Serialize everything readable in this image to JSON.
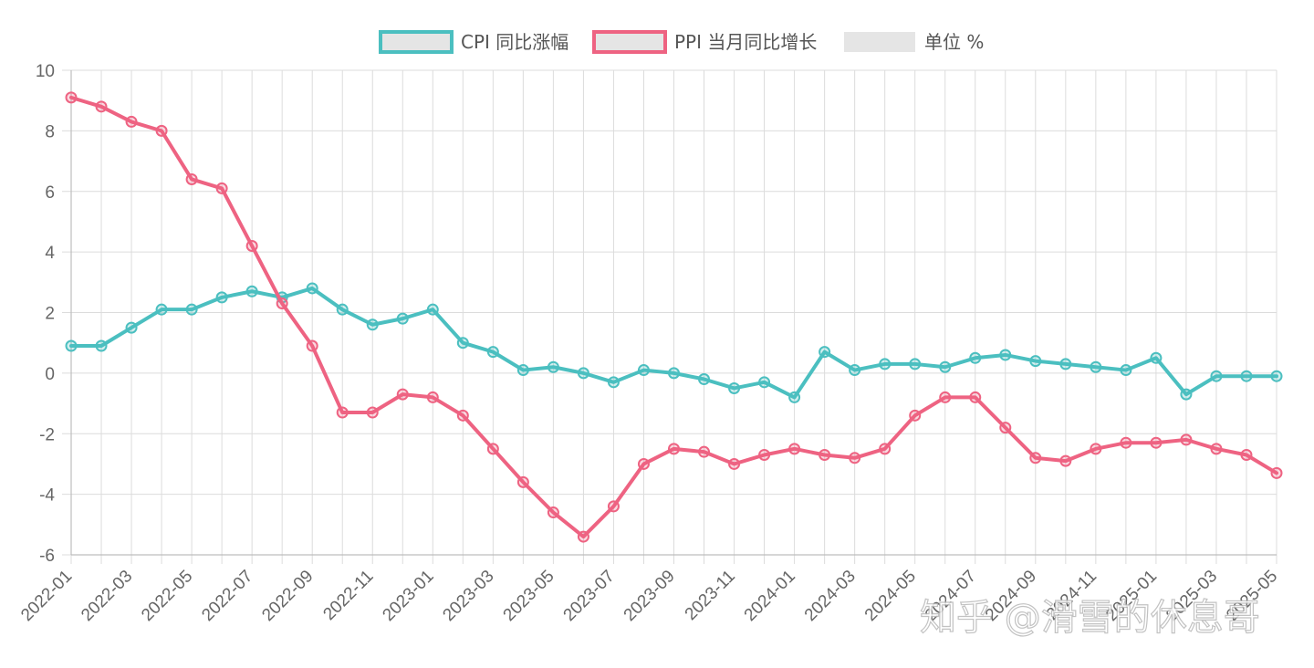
{
  "watermark": "知乎 @滑雪的休息哥",
  "chart_data": {
    "type": "line",
    "title": "",
    "xlabel": "",
    "ylabel": "",
    "ylim": [
      -6,
      10
    ],
    "yticks": [
      -6,
      -4,
      -2,
      0,
      2,
      4,
      6,
      8,
      10
    ],
    "grid": true,
    "legend_position": "top",
    "legend": [
      {
        "label": "CPI 同比涨幅",
        "color": "#4bbfc0",
        "fill": "#e5e5e5"
      },
      {
        "label": "PPI 当月同比增长",
        "color": "#ee6382",
        "fill": "#e5e5e5"
      },
      {
        "label": "单位 %",
        "color": "#e5e5e5",
        "fill": "#e5e5e5"
      }
    ],
    "x": [
      "2022-01",
      "2022-02",
      "2022-03",
      "2022-04",
      "2022-05",
      "2022-06",
      "2022-07",
      "2022-08",
      "2022-09",
      "2022-10",
      "2022-11",
      "2022-12",
      "2023-01",
      "2023-02",
      "2023-03",
      "2023-04",
      "2023-05",
      "2023-06",
      "2023-07",
      "2023-08",
      "2023-09",
      "2023-10",
      "2023-11",
      "2023-12",
      "2024-01",
      "2024-02",
      "2024-03",
      "2024-04",
      "2024-05",
      "2024-06",
      "2024-07",
      "2024-08",
      "2024-09",
      "2024-10",
      "2024-11",
      "2024-12",
      "2025-01",
      "2025-02",
      "2025-03",
      "2025-04",
      "2025-05"
    ],
    "x_tick_labels": [
      "2022-01",
      "2022-03",
      "2022-05",
      "2022-07",
      "2022-09",
      "2022-11",
      "2023-01",
      "2023-03",
      "2023-05",
      "2023-07",
      "2023-09",
      "2023-11",
      "2024-01",
      "2024-03",
      "2024-05",
      "2024-07",
      "2024-09",
      "2024-11",
      "2025-01",
      "2025-03",
      "2025-05"
    ],
    "series": [
      {
        "name": "CPI 同比涨幅",
        "color": "#4bbfc0",
        "values": [
          0.9,
          0.9,
          1.5,
          2.1,
          2.1,
          2.5,
          2.7,
          2.5,
          2.8,
          2.1,
          1.6,
          1.8,
          2.1,
          1.0,
          0.7,
          0.1,
          0.2,
          0.0,
          -0.3,
          0.1,
          0.0,
          -0.2,
          -0.5,
          -0.3,
          -0.8,
          0.7,
          0.1,
          0.3,
          0.3,
          0.2,
          0.5,
          0.6,
          0.4,
          0.3,
          0.2,
          0.1,
          0.5,
          -0.7,
          -0.1,
          -0.1,
          -0.1
        ]
      },
      {
        "name": "PPI 当月同比增长",
        "color": "#ee6382",
        "values": [
          9.1,
          8.8,
          8.3,
          8.0,
          6.4,
          6.1,
          4.2,
          2.3,
          0.9,
          -1.3,
          -1.3,
          -0.7,
          -0.8,
          -1.4,
          -2.5,
          -3.6,
          -4.6,
          -5.4,
          -4.4,
          -3.0,
          -2.5,
          -2.6,
          -3.0,
          -2.7,
          -2.5,
          -2.7,
          -2.8,
          -2.5,
          -1.4,
          -0.8,
          -0.8,
          -1.8,
          -2.8,
          -2.9,
          -2.5,
          -2.3,
          -2.3,
          -2.2,
          -2.5,
          -2.7,
          -3.3
        ]
      }
    ]
  }
}
